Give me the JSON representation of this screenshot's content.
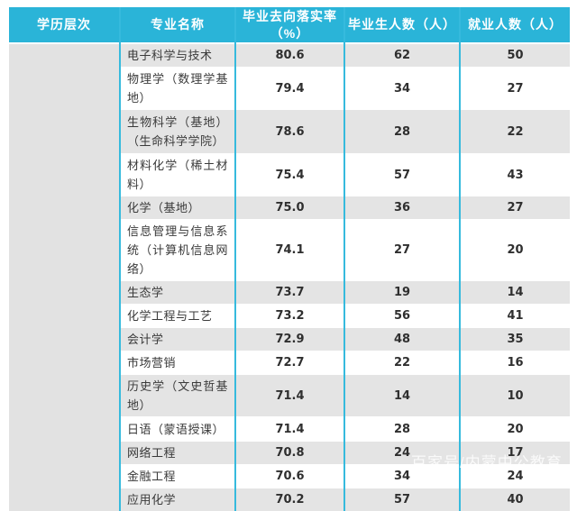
{
  "theme": {
    "header_bg": "#2ab4d8",
    "header_text": "#ffffff",
    "column_border_color": "#36badd",
    "row_bg": "#ffffff",
    "row_alt_bg": "#e4e4e4",
    "level_cell_bg": "#e2e2e2",
    "cell_text_color": "#3a3a3a",
    "number_text_color": "#2f2f2f",
    "watermark_color": "rgba(255,255,255,0.82)"
  },
  "table": {
    "columns": [
      {
        "label": "学历层次"
      },
      {
        "label": "专业名称"
      },
      {
        "label": "毕业去向落实率\n（%）"
      },
      {
        "label": "毕业生人数（人）"
      },
      {
        "label": "就业人数（人）"
      }
    ],
    "education_level_value": "",
    "rows": [
      {
        "major": "电子科学与技术",
        "rate": "80.6",
        "graduates": "62",
        "employed": "50"
      },
      {
        "major": "物理学（数理学基地）",
        "rate": "79.4",
        "graduates": "34",
        "employed": "27"
      },
      {
        "major": "生物科学（基地）（生命科学学院）",
        "rate": "78.6",
        "graduates": "28",
        "employed": "22"
      },
      {
        "major": "材料化学（稀土材料）",
        "rate": "75.4",
        "graduates": "57",
        "employed": "43"
      },
      {
        "major": "化学（基地）",
        "rate": "75.0",
        "graduates": "36",
        "employed": "27"
      },
      {
        "major": "信息管理与信息系统（计算机信息网络）",
        "rate": "74.1",
        "graduates": "27",
        "employed": "20"
      },
      {
        "major": "生态学",
        "rate": "73.7",
        "graduates": "19",
        "employed": "14"
      },
      {
        "major": "化学工程与工艺",
        "rate": "73.2",
        "graduates": "56",
        "employed": "41"
      },
      {
        "major": "会计学",
        "rate": "72.9",
        "graduates": "48",
        "employed": "35"
      },
      {
        "major": "市场营销",
        "rate": "72.7",
        "graduates": "22",
        "employed": "16"
      },
      {
        "major": "历史学（文史哲基地）",
        "rate": "71.4",
        "graduates": "14",
        "employed": "10"
      },
      {
        "major": "日语（蒙语授课）",
        "rate": "71.4",
        "graduates": "28",
        "employed": "20"
      },
      {
        "major": "网络工程",
        "rate": "70.8",
        "graduates": "24",
        "employed": "17"
      },
      {
        "major": "金融工程",
        "rate": "70.6",
        "graduates": "34",
        "employed": "24"
      },
      {
        "major": "应用化学",
        "rate": "70.2",
        "graduates": "57",
        "employed": "40"
      }
    ]
  },
  "watermark": {
    "text": "百家号/内蒙中公教育"
  }
}
